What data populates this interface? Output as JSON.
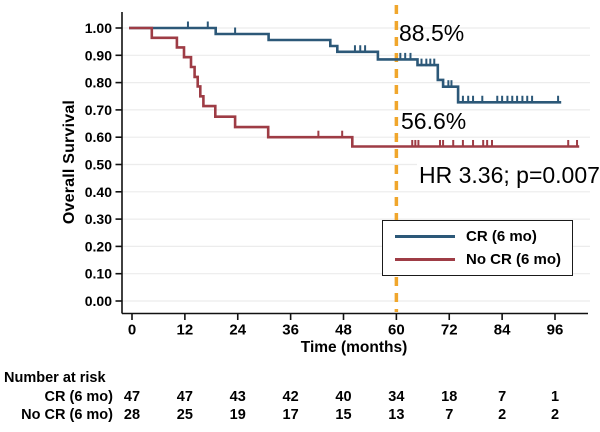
{
  "axes": {
    "y_title": "Overall Survival",
    "x_title": "Time (months)"
  },
  "annotations": {
    "cr_rate": "88.5%",
    "nocr_rate": "56.6%",
    "hr": "HR 3.36; p=0.007"
  },
  "legend": {
    "items": [
      {
        "label": "CR (6 mo)",
        "color": "#2c5878"
      },
      {
        "label": "No CR (6 mo)",
        "color": "#9e3c45"
      }
    ]
  },
  "risk_table": {
    "heading": "Number at risk",
    "rows": [
      {
        "label": "CR (6 mo)",
        "values": [
          "47",
          "47",
          "43",
          "42",
          "40",
          "34",
          "18",
          "7",
          "1"
        ]
      },
      {
        "label": "No CR (6 mo)",
        "values": [
          "28",
          "25",
          "19",
          "17",
          "15",
          "13",
          "7",
          "2",
          "2"
        ]
      }
    ]
  },
  "chart_data": {
    "type": "line",
    "subtype": "kaplan-meier-step",
    "title": "",
    "xlabel": "Time (months)",
    "ylabel": "Overall Survival",
    "xlim": [
      0,
      96
    ],
    "ylim": [
      0.0,
      1.0
    ],
    "grid": true,
    "legend_position": "lower right",
    "x_ticks": [
      0,
      12,
      24,
      36,
      48,
      60,
      72,
      84,
      96
    ],
    "y_ticks": [
      "1.00",
      "0.90",
      "0.80",
      "0.70",
      "0.60",
      "0.50",
      "0.40",
      "0.30",
      "0.20",
      "0.10",
      "0.00"
    ],
    "reference_line": {
      "x": 60,
      "style": "dashed",
      "color": "#f0a62c"
    },
    "annotations": [
      {
        "text": "88.5%",
        "series": "CR (6 mo)",
        "at_month": 60
      },
      {
        "text": "56.6%",
        "series": "No CR (6 mo)",
        "at_month": 60
      },
      {
        "text": "HR 3.36; p=0.007"
      }
    ],
    "series": [
      {
        "name": "CR (6 mo)",
        "color": "#2c5878",
        "steps": [
          [
            0,
            1.0
          ],
          [
            19,
            0.978
          ],
          [
            31,
            0.956
          ],
          [
            45,
            0.934
          ],
          [
            46.6,
            0.913
          ],
          [
            55.8,
            0.885
          ],
          [
            64.8,
            0.864
          ],
          [
            69.4,
            0.81
          ],
          [
            70.6,
            0.785
          ],
          [
            74,
            0.728
          ]
        ],
        "end_t": 97.4,
        "censor_ticks": [
          [
            12.7,
            1.0
          ],
          [
            17.2,
            1.0
          ],
          [
            23.4,
            0.978
          ],
          [
            50.6,
            0.913
          ],
          [
            51.8,
            0.913
          ],
          [
            52.9,
            0.913
          ],
          [
            60.9,
            0.885
          ],
          [
            62,
            0.885
          ],
          [
            63.2,
            0.885
          ],
          [
            65.7,
            0.864
          ],
          [
            66.8,
            0.864
          ],
          [
            67.7,
            0.864
          ],
          [
            68.6,
            0.864
          ],
          [
            71.8,
            0.785
          ],
          [
            72.5,
            0.785
          ],
          [
            75.1,
            0.728
          ],
          [
            76.3,
            0.728
          ],
          [
            77.4,
            0.728
          ],
          [
            79.5,
            0.728
          ],
          [
            82.9,
            0.728
          ],
          [
            84,
            0.728
          ],
          [
            85.2,
            0.728
          ],
          [
            86.3,
            0.728
          ],
          [
            87.4,
            0.728
          ],
          [
            88.6,
            0.728
          ],
          [
            89.7,
            0.728
          ],
          [
            90.8,
            0.728
          ],
          [
            96.7,
            0.728
          ]
        ]
      },
      {
        "name": "No CR (6 mo)",
        "color": "#9e3c45",
        "steps": [
          [
            0,
            1.0
          ],
          [
            4.5,
            0.964
          ],
          [
            10.2,
            0.929
          ],
          [
            11.8,
            0.893
          ],
          [
            13.4,
            0.857
          ],
          [
            14.2,
            0.821
          ],
          [
            14.9,
            0.786
          ],
          [
            15.5,
            0.75
          ],
          [
            16.2,
            0.714
          ],
          [
            18.9,
            0.675
          ],
          [
            23.4,
            0.637
          ],
          [
            30.9,
            0.6
          ],
          [
            50,
            0.566
          ]
        ],
        "end_t": 101.5,
        "censor_ticks": [
          [
            42.3,
            0.6
          ],
          [
            47.7,
            0.6
          ],
          [
            63.6,
            0.566
          ],
          [
            64.3,
            0.566
          ],
          [
            65,
            0.566
          ],
          [
            69.9,
            0.566
          ],
          [
            70.6,
            0.566
          ],
          [
            72.9,
            0.566
          ],
          [
            75.1,
            0.566
          ],
          [
            77.4,
            0.566
          ],
          [
            79.7,
            0.566
          ],
          [
            80.6,
            0.566
          ],
          [
            81.7,
            0.566
          ],
          [
            99,
            0.566
          ],
          [
            101,
            0.566
          ]
        ]
      }
    ],
    "number_at_risk": {
      "time_points": [
        0,
        12,
        24,
        36,
        48,
        60,
        72,
        84,
        96
      ],
      "CR (6 mo)": [
        47,
        47,
        43,
        42,
        40,
        34,
        18,
        7,
        1
      ],
      "No CR (6 mo)": [
        28,
        25,
        19,
        17,
        15,
        13,
        7,
        2,
        2
      ]
    },
    "colors": {
      "grid": "#ececec",
      "axis": "#111111",
      "reference": "#f0a62c"
    }
  }
}
